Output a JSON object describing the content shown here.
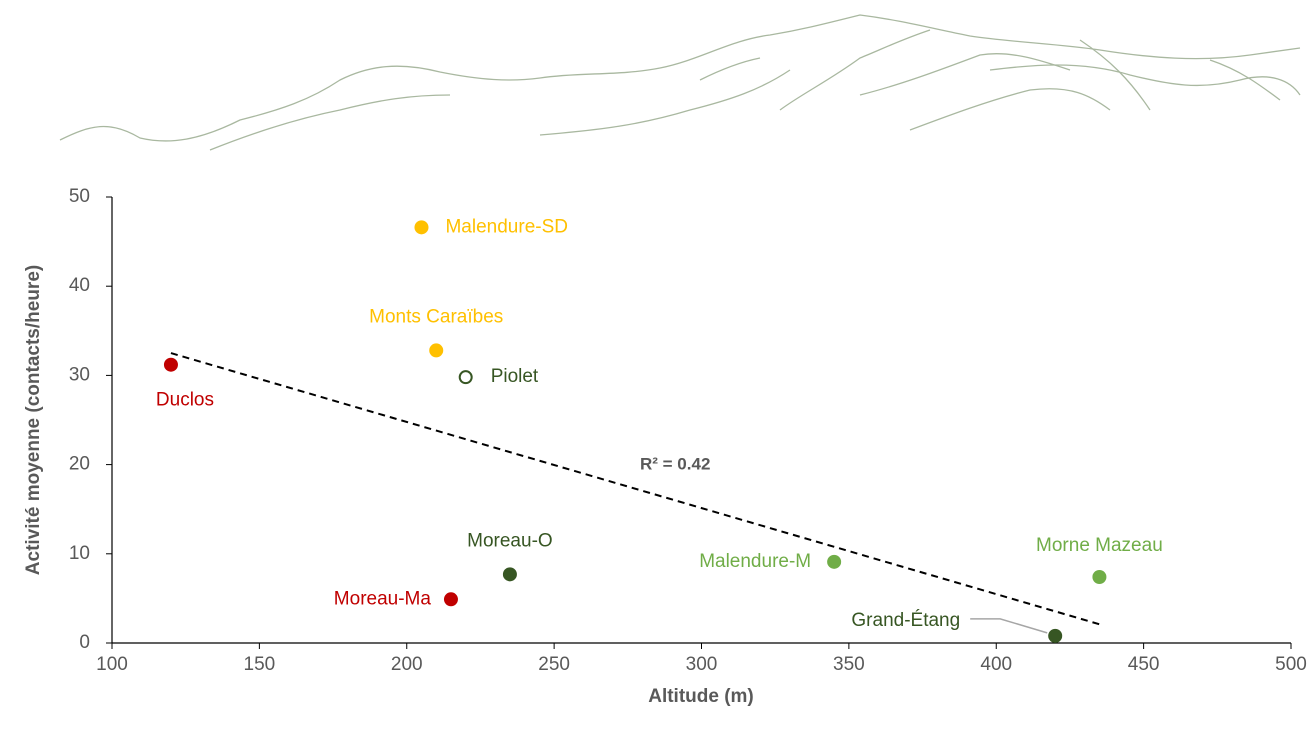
{
  "chart_data": {
    "type": "scatter",
    "x_label": "Altitude (m)",
    "y_label": "Activité moyenne (contacts/heure)",
    "xlim": [
      100,
      500
    ],
    "xticks": [
      100,
      150,
      200,
      250,
      300,
      350,
      400,
      450,
      500
    ],
    "ylim": [
      0,
      50
    ],
    "yticks": [
      0,
      10,
      20,
      30,
      40,
      50
    ],
    "series": [
      {
        "name": "Malendure-SD",
        "color": "#ffc000",
        "x": [
          205
        ],
        "values": [
          46.6
        ]
      },
      {
        "name": "Monts Caraïbes",
        "color": "#ffc000",
        "x": [
          210
        ],
        "values": [
          32.8
        ]
      },
      {
        "name": "Piolet",
        "color": "#375623",
        "filled": false,
        "x": [
          220
        ],
        "values": [
          29.8
        ]
      },
      {
        "name": "Duclos",
        "color": "#c00000",
        "x": [
          120
        ],
        "values": [
          31.2
        ]
      },
      {
        "name": "Moreau-O",
        "color": "#375623",
        "x": [
          235
        ],
        "values": [
          7.7
        ]
      },
      {
        "name": "Moreau-Ma",
        "color": "#c00000",
        "x": [
          215
        ],
        "values": [
          4.9
        ]
      },
      {
        "name": "Malendure-M",
        "color": "#70ad47",
        "x": [
          345
        ],
        "values": [
          9.1
        ]
      },
      {
        "name": "Morne Mazeau",
        "color": "#70ad47",
        "x": [
          435
        ],
        "values": [
          7.4
        ]
      },
      {
        "name": "Grand-Étang",
        "color": "#375623",
        "x": [
          420
        ],
        "values": [
          0.8
        ]
      }
    ],
    "trendline": {
      "x": [
        120,
        435
      ],
      "values": [
        32.5,
        2.1
      ],
      "label": "R² = 0.42",
      "color": "#000000"
    }
  }
}
